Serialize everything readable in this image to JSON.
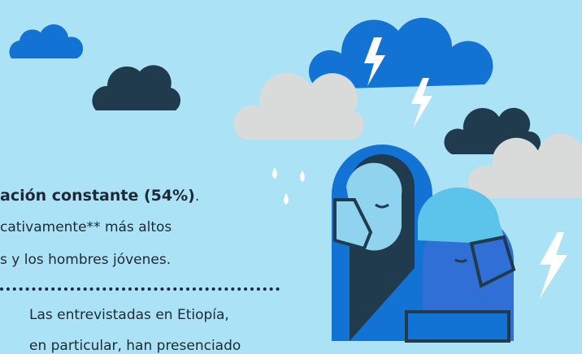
{
  "paragraph_1": {
    "bold": "ación constante (54%)",
    "end": ".",
    "lines": [
      "cativamente** más altos",
      "s y los hombres jóvenes."
    ]
  },
  "paragraph_2": {
    "lines": [
      "Las entrevistadas en Etiopía,",
      "en particular, han presenciado"
    ]
  }
}
